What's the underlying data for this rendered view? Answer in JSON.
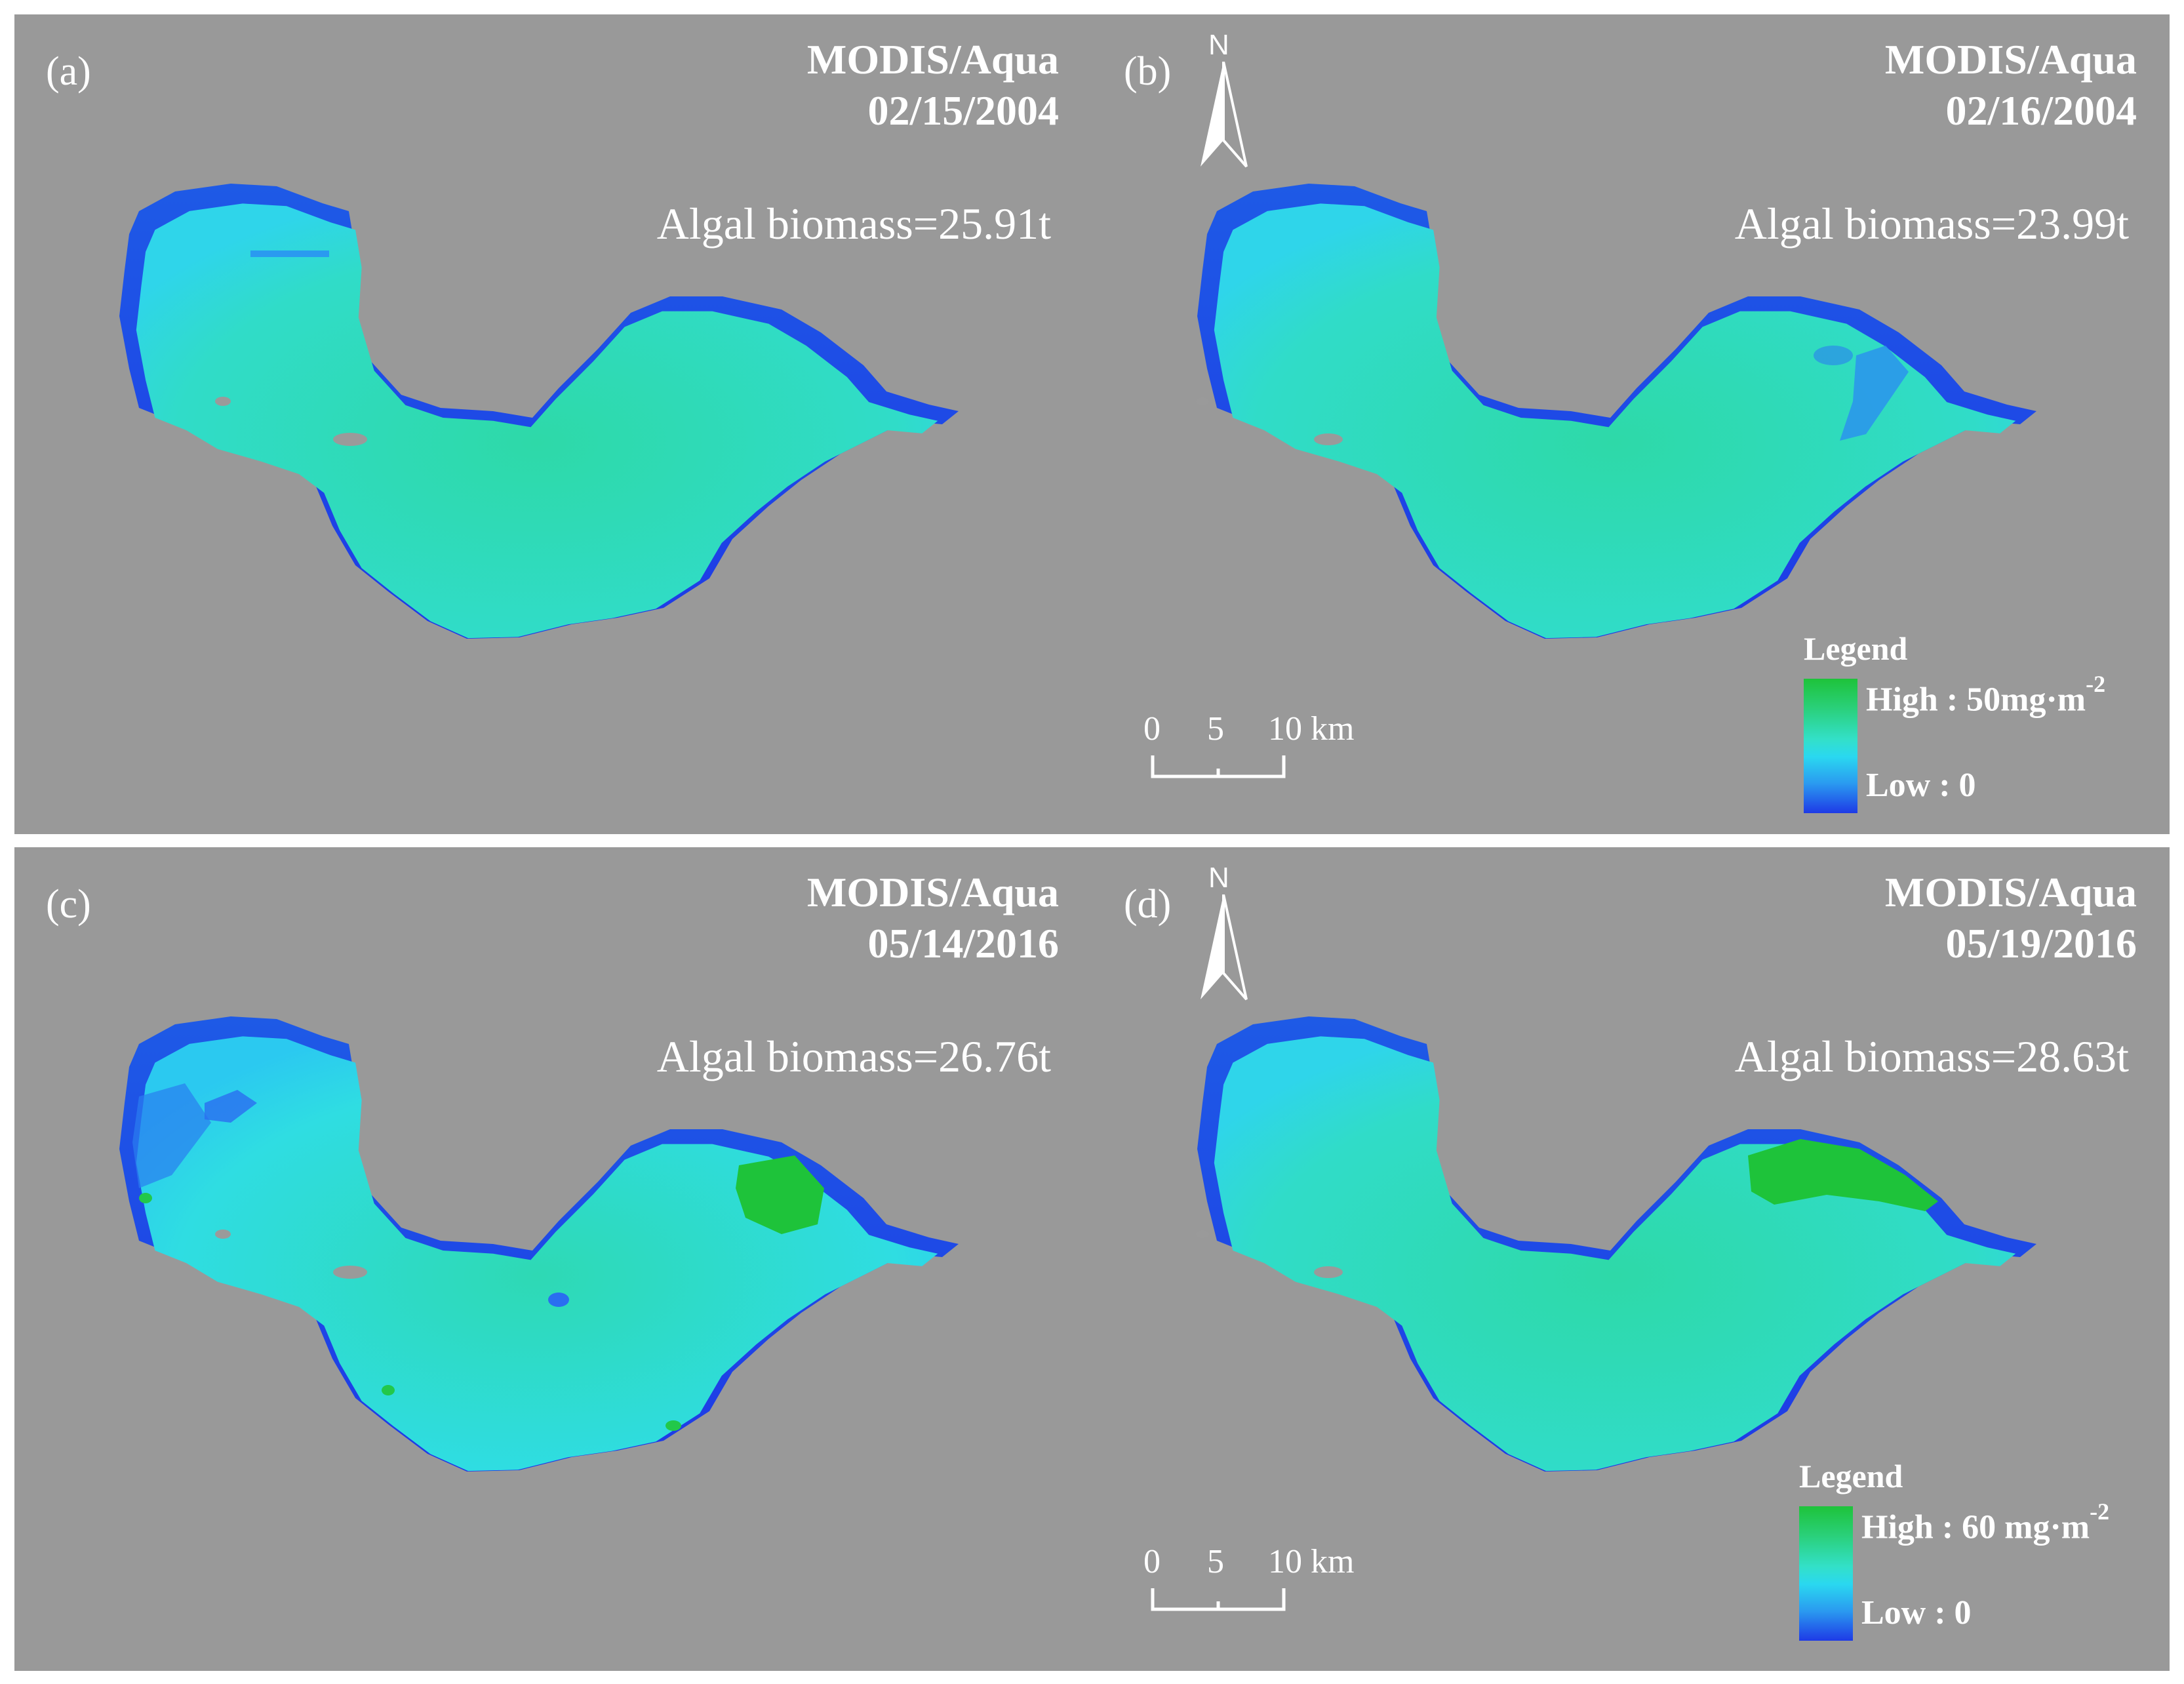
{
  "panels": [
    {
      "label": "(a)",
      "sensor": "MODIS/Aqua",
      "date": "02/15/2004",
      "biomass": "Algal biomass=25.91t"
    },
    {
      "label": "(b)",
      "sensor": "MODIS/Aqua",
      "date": "02/16/2004",
      "biomass": "Algal biomass=23.99t"
    },
    {
      "label": "(c)",
      "sensor": "MODIS/Aqua",
      "date": "05/14/2016",
      "biomass": "Algal biomass=26.76t"
    },
    {
      "label": "(d)",
      "sensor": "MODIS/Aqua",
      "date": "05/19/2016",
      "biomass": "Algal biomass=28.63t"
    }
  ],
  "north_arrow": {
    "label": "N"
  },
  "scale_bar": {
    "ticks": [
      "0",
      "5",
      "10 km"
    ]
  },
  "legends": [
    {
      "title": "Legend",
      "high": "High : 50mg·m",
      "high_exp": "-2",
      "low": "Low : 0"
    },
    {
      "title": "Legend",
      "high": "High : 60 mg·m",
      "high_exp": "-2",
      "low": "Low : 0"
    }
  ],
  "colors": {
    "background": "#999999",
    "lake_fill": "#2fe0c4",
    "lake_edge": "#1e3ae6",
    "bloom_high": "#1ec33a"
  }
}
